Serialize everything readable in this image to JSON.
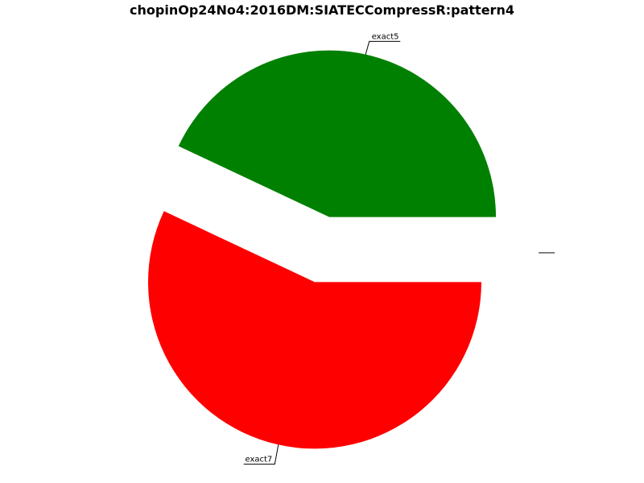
{
  "chart_data": {
    "type": "pie",
    "title": "chopinOp24No4:2016DM:SIATECCompressR:pattern4",
    "slices": [
      {
        "label": "exact5",
        "value": 43.0,
        "color": "#008000",
        "exploded": true
      },
      {
        "label": "exact7",
        "value": 57.0,
        "color": "#ff0000",
        "exploded": true
      },
      {
        "label": "",
        "value": 0.0,
        "color": "#0000ff",
        "exploded": true
      }
    ],
    "start_angle_deg": 0,
    "direction": "counterclockwise"
  }
}
